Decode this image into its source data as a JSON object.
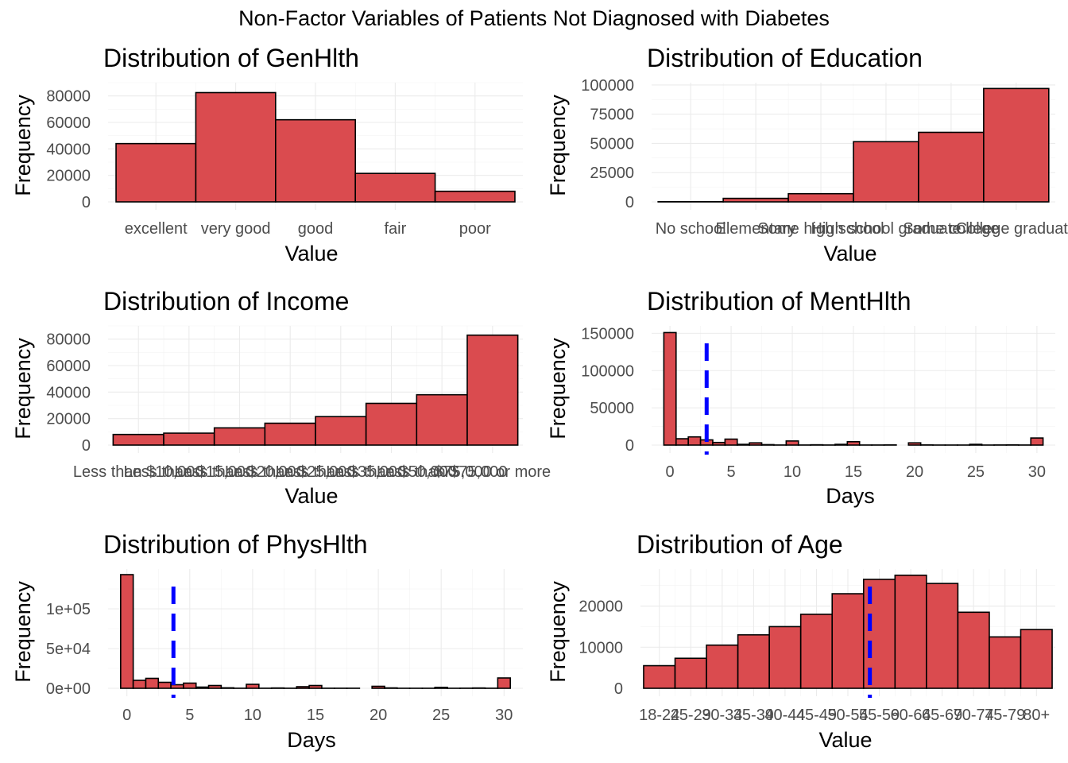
{
  "figure": {
    "title": "Non-Factor Variables of Patients Not Diagnosed with Diabetes",
    "colors": {
      "bar_fill": "#d9474b",
      "mean_line": "#0000ff",
      "grid": "#ebebeb",
      "tick_text": "#4d4d4d"
    }
  },
  "chart_data": [
    {
      "id": "genhlth",
      "type": "bar",
      "title": "Distribution of GenHlth",
      "xlabel": "Value",
      "ylabel": "Frequency",
      "categories": [
        "excellent",
        "very good",
        "good",
        "fair",
        "poor"
      ],
      "values": [
        44000,
        82500,
        62000,
        21500,
        8000
      ],
      "ylim": [
        0,
        90000
      ],
      "yticks": [
        0,
        20000,
        40000,
        60000,
        80000
      ],
      "ytick_labels": [
        "0",
        "20000",
        "40000",
        "60000",
        "80000"
      ],
      "grid": true
    },
    {
      "id": "education",
      "type": "bar",
      "title": "Distribution of Education",
      "xlabel": "Value",
      "ylabel": "Frequency",
      "categories": [
        "No school",
        "Elementary",
        "Some high school",
        "High school graduate",
        "Some college",
        "College graduate"
      ],
      "values": [
        150,
        3000,
        7000,
        51500,
        59500,
        97000
      ],
      "ylim": [
        0,
        102000
      ],
      "yticks": [
        0,
        25000,
        50000,
        75000,
        100000
      ],
      "ytick_labels": [
        "0",
        "25000",
        "50000",
        "75000",
        "100000"
      ],
      "grid": true
    },
    {
      "id": "income",
      "type": "bar",
      "title": "Distribution of Income",
      "xlabel": "Value",
      "ylabel": "Frequency",
      "categories": [
        "Less than $10,000",
        "Less than $15,000",
        "Less than $20,000",
        "Less than $25,000",
        "Less than $35,000",
        "Less than $50,000",
        "Less than $75,000",
        "$75,000 or more"
      ],
      "values": [
        8000,
        9000,
        13000,
        16500,
        21500,
        31500,
        38000,
        83000
      ],
      "ylim": [
        0,
        90000
      ],
      "yticks": [
        0,
        20000,
        40000,
        60000,
        80000
      ],
      "ytick_labels": [
        "0",
        "20000",
        "40000",
        "60000",
        "80000"
      ],
      "grid": true
    },
    {
      "id": "menthlth",
      "type": "bar",
      "title": "Distribution of MentHlth",
      "xlabel": "Days",
      "ylabel": "Frequency",
      "x": [
        0,
        1,
        2,
        3,
        4,
        5,
        6,
        7,
        8,
        9,
        10,
        11,
        12,
        13,
        14,
        15,
        16,
        17,
        18,
        19,
        20,
        21,
        22,
        23,
        24,
        25,
        26,
        27,
        28,
        29,
        30
      ],
      "values": [
        151000,
        8500,
        11000,
        7000,
        3500,
        8000,
        1000,
        3000,
        600,
        100,
        5500,
        100,
        400,
        100,
        1000,
        4500,
        100,
        100,
        200,
        0,
        3000,
        200,
        60,
        60,
        60,
        1000,
        60,
        150,
        300,
        100,
        9500
      ],
      "xlim": [
        -1.5,
        31.5
      ],
      "xticks": [
        0,
        5,
        10,
        15,
        20,
        25,
        30
      ],
      "xtick_labels": [
        "0",
        "5",
        "10",
        "15",
        "20",
        "25",
        "30"
      ],
      "ylim": [
        0,
        160000
      ],
      "yticks": [
        0,
        50000,
        100000,
        150000
      ],
      "ytick_labels": [
        "0",
        "50000",
        "100000",
        "150000"
      ],
      "mean_line": 3.0,
      "grid": true
    },
    {
      "id": "physhlth",
      "type": "bar",
      "title": "Distribution of PhysHlth",
      "xlabel": "Days",
      "ylabel": "Frequency",
      "x": [
        0,
        1,
        2,
        3,
        4,
        5,
        6,
        7,
        8,
        9,
        10,
        11,
        12,
        13,
        14,
        15,
        16,
        17,
        18,
        19,
        20,
        21,
        22,
        23,
        24,
        25,
        26,
        27,
        28,
        29,
        30
      ],
      "values": [
        143000,
        10000,
        12500,
        7500,
        4500,
        6500,
        1500,
        3500,
        600,
        100,
        5000,
        100,
        400,
        100,
        2000,
        3500,
        100,
        100,
        100,
        0,
        2500,
        500,
        60,
        60,
        60,
        1200,
        60,
        150,
        400,
        100,
        13000
      ],
      "xlim": [
        -1.5,
        31.5
      ],
      "xticks": [
        0,
        5,
        10,
        15,
        20,
        25,
        30
      ],
      "xtick_labels": [
        "0",
        "5",
        "10",
        "15",
        "20",
        "25",
        "30"
      ],
      "ylim": [
        0,
        150000
      ],
      "yticks": [
        0,
        50000,
        100000
      ],
      "ytick_labels": [
        "0e+00",
        "5e+04",
        "1e+05"
      ],
      "mean_line": 3.7,
      "grid": true
    },
    {
      "id": "age",
      "type": "bar",
      "title": "Distribution of Age",
      "xlabel": "Value",
      "ylabel": "Frequency",
      "categories": [
        "18-24",
        "25-29",
        "30-34",
        "35-39",
        "40-44",
        "45-49",
        "50-54",
        "55-59",
        "60-64",
        "65-69",
        "70-74",
        "75-79",
        "80+"
      ],
      "values": [
        5500,
        7300,
        10500,
        13000,
        15000,
        18000,
        23000,
        26500,
        27500,
        25500,
        18500,
        12500,
        14300
      ],
      "ylim": [
        0,
        29000
      ],
      "yticks": [
        0,
        10000,
        20000
      ],
      "ytick_labels": [
        "0",
        "10000",
        "20000"
      ],
      "mean_line": 7.7,
      "grid": true
    }
  ]
}
